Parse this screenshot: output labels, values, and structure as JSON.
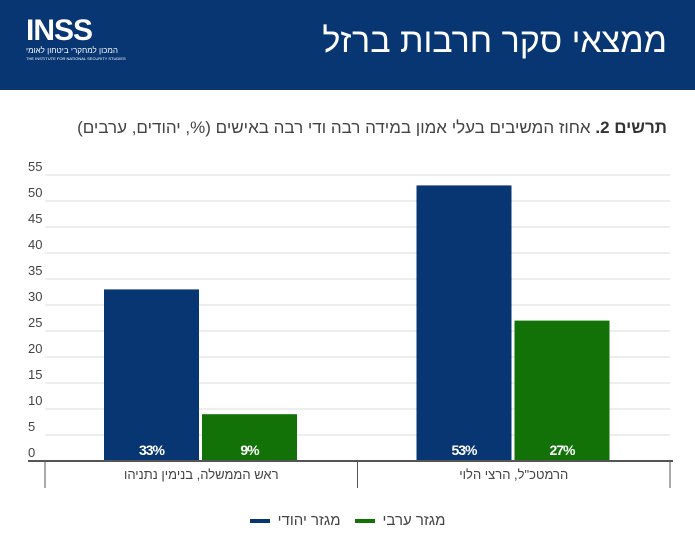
{
  "header": {
    "title": "ממצאי סקר חרבות ברזל",
    "logo_text": "INSS",
    "logo_subtitle": "המכון למחקרי ביטחון לאומי",
    "logo_english": "THE INSTITUTE FOR NATIONAL SECURITY STUDIES"
  },
  "caption": {
    "prefix": "תרשים 2.",
    "text": " אחוז המשיבים בעלי אמון במידה רבה ודי רבה באישים (%, יהודים, ערבים)"
  },
  "colors": {
    "header": "#073672",
    "jewish": "#073672",
    "arab": "#127208"
  },
  "chart_data": {
    "type": "bar",
    "categories": [
      "ראש הממשלה, בנימין נתניהו",
      "הרמטכ\"ל, הרצי הלוי"
    ],
    "series": [
      {
        "name": "מגזר יהודי",
        "values": [
          33,
          53
        ],
        "labels": [
          "33%",
          "53%"
        ],
        "color": "#073672"
      },
      {
        "name": "מגזר ערבי",
        "values": [
          9,
          27
        ],
        "labels": [
          "9%",
          "27%"
        ],
        "color": "#127208"
      }
    ],
    "ylim": [
      0,
      55
    ],
    "yticks": [
      "0",
      "5",
      "10",
      "15",
      "20",
      "25",
      "30",
      "35",
      "40",
      "45",
      "50",
      "55"
    ],
    "grid": true,
    "legend": "bottom"
  }
}
